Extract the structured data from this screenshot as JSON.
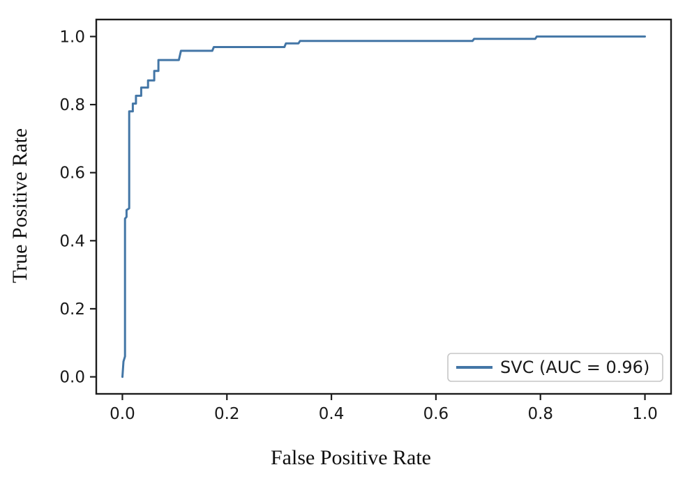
{
  "figure": {
    "background": "#ffffff"
  },
  "chart_data": {
    "type": "line",
    "subtype": "roc-curve",
    "title": "",
    "xlabel": "False Positive Rate",
    "ylabel": "True Positive Rate",
    "xlim": [
      -0.05,
      1.05
    ],
    "ylim": [
      -0.05,
      1.05
    ],
    "xticks": [
      "0.0",
      "0.2",
      "0.4",
      "0.6",
      "0.8",
      "1.0"
    ],
    "yticks": [
      "0.0",
      "0.2",
      "0.4",
      "0.6",
      "0.8",
      "1.0"
    ],
    "grid": false,
    "legend": {
      "position": "lower-right",
      "entries": [
        {
          "label": "SVC (AUC = 0.96)",
          "color": "#4376a6"
        }
      ]
    },
    "series": [
      {
        "name": "SVC",
        "auc": 0.96,
        "color": "#4376a6",
        "points": [
          [
            0.0,
            0.0
          ],
          [
            0.002,
            0.045
          ],
          [
            0.005,
            0.06
          ],
          [
            0.005,
            0.465
          ],
          [
            0.008,
            0.47
          ],
          [
            0.008,
            0.49
          ],
          [
            0.013,
            0.495
          ],
          [
            0.013,
            0.78
          ],
          [
            0.02,
            0.78
          ],
          [
            0.02,
            0.803
          ],
          [
            0.026,
            0.803
          ],
          [
            0.026,
            0.826
          ],
          [
            0.036,
            0.826
          ],
          [
            0.036,
            0.85
          ],
          [
            0.049,
            0.85
          ],
          [
            0.049,
            0.871
          ],
          [
            0.061,
            0.871
          ],
          [
            0.061,
            0.899
          ],
          [
            0.069,
            0.899
          ],
          [
            0.069,
            0.931
          ],
          [
            0.108,
            0.931
          ],
          [
            0.112,
            0.958
          ],
          [
            0.172,
            0.958
          ],
          [
            0.175,
            0.969
          ],
          [
            0.31,
            0.969
          ],
          [
            0.313,
            0.98
          ],
          [
            0.337,
            0.98
          ],
          [
            0.34,
            0.987
          ],
          [
            0.67,
            0.987
          ],
          [
            0.673,
            0.993
          ],
          [
            0.79,
            0.993
          ],
          [
            0.793,
            1.0
          ],
          [
            1.0,
            1.0
          ]
        ]
      }
    ]
  }
}
